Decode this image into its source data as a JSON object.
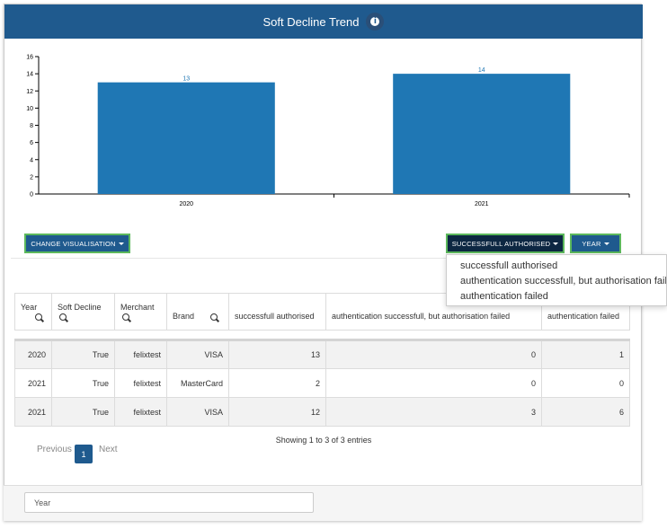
{
  "header": {
    "title": "Soft Decline Trend",
    "info_icon": "info-icon"
  },
  "chart_data": {
    "type": "bar",
    "categories": [
      "2020",
      "2021"
    ],
    "values": [
      13,
      14
    ],
    "ylim": [
      0,
      16
    ],
    "yticks": [
      0,
      2,
      4,
      6,
      8,
      10,
      12,
      14,
      16
    ],
    "bar_color": "#1f77b4",
    "label_color": "#1f77b4"
  },
  "controls": {
    "change_visualisation": "CHANGE VISUALISATION",
    "measure": "SUCCESSFULL AUTHORISED",
    "year": "YEAR"
  },
  "dropdown": {
    "options": [
      "successfull authorised",
      "authentication successfull, but authorisation failed",
      "authentication failed"
    ]
  },
  "table": {
    "headers": [
      "Year",
      "Soft Decline",
      "Merchant",
      "Brand",
      "successfull authorised",
      "authentication successfull, but authorisation failed",
      "authentication failed"
    ],
    "rows": [
      [
        "2020",
        "True",
        "felixtest",
        "VISA",
        "13",
        "0",
        "1"
      ],
      [
        "2021",
        "True",
        "felixtest",
        "MasterCard",
        "2",
        "0",
        "0"
      ],
      [
        "2021",
        "True",
        "felixtest",
        "VISA",
        "12",
        "3",
        "6"
      ]
    ]
  },
  "info_text": "Showing 1 to 3 of 3 entries",
  "pagination": {
    "previous": "Previous",
    "current": "1",
    "next": "Next"
  },
  "footer": {
    "year_placeholder": "Year"
  },
  "colors": {
    "header_bg": "#1f5a8e",
    "button_border": "#5cb85c"
  }
}
